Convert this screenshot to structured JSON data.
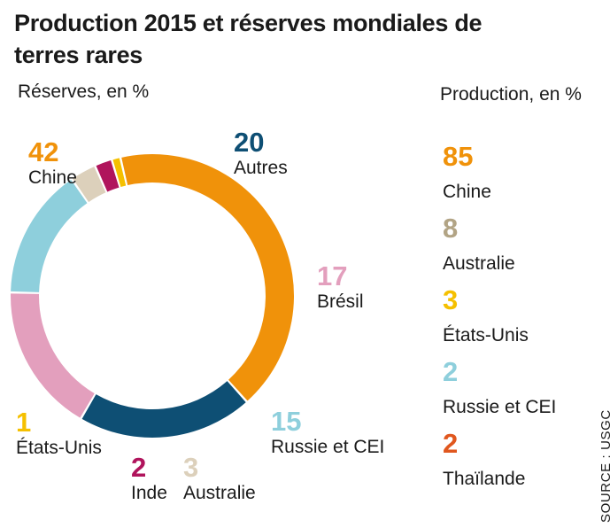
{
  "title": "Production 2015 et réserves mondiales de terres rares",
  "source": "SOURCE : USGC",
  "chart_data": [
    {
      "type": "pie",
      "subtitle": "Réserves, en %",
      "categories": [
        "Chine",
        "Autres",
        "Brésil",
        "Russie et CEI",
        "Australie",
        "Inde",
        "États-Unis"
      ],
      "values": [
        42,
        20,
        17,
        15,
        3,
        2,
        1
      ],
      "colors": [
        "#f0920a",
        "#0e4f74",
        "#e39fbd",
        "#8ecfdc",
        "#dcd0bb",
        "#b0145c",
        "#f5c000"
      ],
      "labels": [
        {
          "value": "42",
          "name": "Chine"
        },
        {
          "value": "20",
          "name": "Autres"
        },
        {
          "value": "17",
          "name": "Brésil"
        },
        {
          "value": "15",
          "name": "Russie et CEI"
        },
        {
          "value": "3",
          "name": "Australie"
        },
        {
          "value": "2",
          "name": "Inde"
        },
        {
          "value": "1",
          "name": "États-Unis"
        }
      ]
    },
    {
      "type": "table",
      "subtitle": "Production, en %",
      "categories": [
        "Chine",
        "Australie",
        "États-Unis",
        "Russie et CEI",
        "Thaïlande"
      ],
      "values": [
        85,
        8,
        3,
        2,
        2
      ],
      "colors": [
        "#f0920a",
        "#b2a485",
        "#f5c000",
        "#8ecfdc",
        "#e0571e"
      ],
      "labels": [
        {
          "value": "85",
          "name": "Chine"
        },
        {
          "value": "8",
          "name": "Australie"
        },
        {
          "value": "3",
          "name": "États-Unis"
        },
        {
          "value": "2",
          "name": "Russie et CEI"
        },
        {
          "value": "2",
          "name": "Thaïlande"
        }
      ]
    }
  ]
}
